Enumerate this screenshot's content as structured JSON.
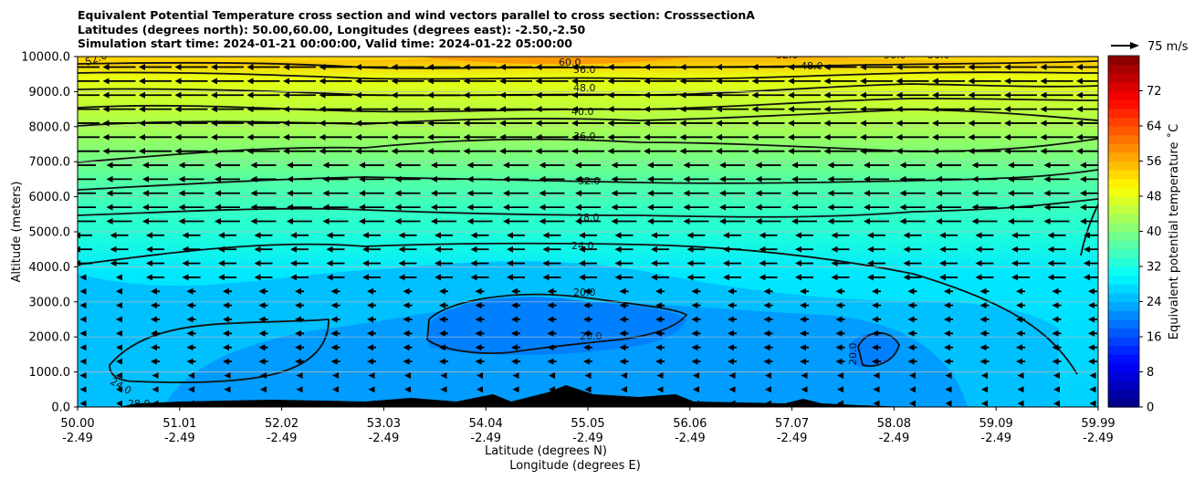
{
  "titles": {
    "line1": "Equivalent Potential Temperature cross section and wind vectors parallel to cross section: CrosssectionA",
    "line2": "Latitudes (degrees north): 50.00,60.00, Longitudes (degrees east): -2.50,-2.50",
    "line3": "Simulation start time: 2024-01-21 00:00:00, Valid time: 2024-01-22 05:00:00"
  },
  "chart_data": {
    "type": "contourf",
    "xlabel": "Latitude (degrees N)",
    "xlabel2": "Longitude (degrees E)",
    "ylabel": "Altitude (meters)",
    "xlim": [
      50.0,
      59.99
    ],
    "ylim": [
      0,
      10000
    ],
    "x_ticks_lat": [
      "50.00",
      "51.01",
      "52.02",
      "53.03",
      "54.04",
      "55.05",
      "56.06",
      "57.07",
      "58.08",
      "59.09",
      "59.99"
    ],
    "x_ticks_lon": [
      "-2.49",
      "-2.49",
      "-2.49",
      "-2.49",
      "-2.49",
      "-2.49",
      "-2.49",
      "-2.49",
      "-2.49",
      "-2.49",
      "-2.49"
    ],
    "y_ticks": [
      "0.0",
      "1000.0",
      "2000.0",
      "3000.0",
      "4000.0",
      "5000.0",
      "6000.0",
      "7000.0",
      "8000.0",
      "9000.0",
      "10000.0"
    ],
    "colorbar": {
      "label": "Equivalent potential temperature ˚C",
      "range": [
        0,
        80
      ],
      "ticks": [
        "0",
        "8",
        "16",
        "24",
        "32",
        "40",
        "48",
        "56",
        "64",
        "72"
      ]
    },
    "quiver_key": "75 m/s",
    "contours": [
      {
        "level": 20,
        "label": "20.0",
        "x": [
          54.0,
          55.4
        ],
        "y": [
          2700,
          2300
        ]
      },
      {
        "level": 24,
        "label": "24.0",
        "x": [
          50.0,
          60.0
        ],
        "y": [
          4100,
          4200
        ]
      },
      {
        "level": 28,
        "label": "28.0",
        "x": [
          50.0,
          60.0
        ],
        "y": [
          5300,
          5300
        ]
      },
      {
        "level": 32,
        "label": "32.0",
        "x": [
          50.0,
          60.0
        ],
        "y": [
          6000,
          6300
        ]
      },
      {
        "level": 36,
        "label": "36.0",
        "x": [
          50.0,
          60.0
        ],
        "y": [
          6900,
          7400
        ]
      },
      {
        "level": 40,
        "label": "40.0",
        "x": [
          50.0,
          60.0
        ],
        "y": [
          8000,
          8100
        ]
      },
      {
        "level": 48,
        "label": "48.0",
        "x": [
          50.0,
          60.0
        ],
        "y": [
          9300,
          9400
        ]
      },
      {
        "level": 56,
        "label": "56.0",
        "x": [
          50.0,
          60.0
        ],
        "y": [
          9800,
          9700
        ]
      },
      {
        "level": 60,
        "label": "60.0",
        "x": [
          54.8,
          55.3
        ],
        "y": [
          9900,
          9950
        ]
      }
    ],
    "contour_labels": [
      "52.0",
      "60.0",
      "56.0",
      "48.0",
      "40.0",
      "36.0",
      "32.0",
      "28.0",
      "24.0",
      "20.0",
      "20.0",
      "20.0",
      "24.0",
      "28.0",
      "52.0",
      "48.0",
      "56.0",
      "56.0"
    ],
    "wind": "parallel component mostly negative (northerly), strongest aloft"
  }
}
